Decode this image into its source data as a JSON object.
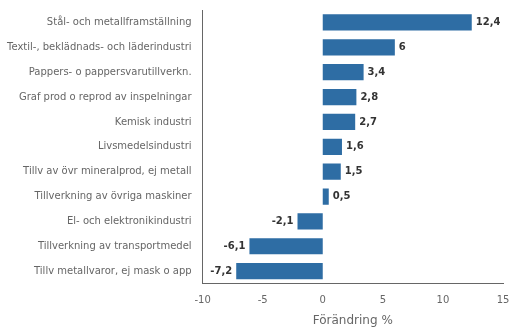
{
  "chart_data": {
    "type": "bar",
    "orientation": "horizontal",
    "categories": [
      "Tillv metallvaror, ej mask o app",
      "Tillverkning av transportmedel",
      "El- och elektronikindustri",
      "Tillverkning av övriga maskiner",
      "Tillv av övr mineralprod, ej metall",
      "Livsmedelsindustri",
      "Kemisk industri",
      "Graf prod o reprod av inspelningar",
      "Pappers- o pappersvarutillverkn.",
      "Textil-, beklädnads- och läderindustri",
      "Stål- och metallframställning"
    ],
    "values": [
      -7.2,
      -6.1,
      -2.1,
      0.5,
      1.5,
      1.6,
      2.7,
      2.8,
      3.4,
      6.0,
      12.4
    ],
    "value_labels": [
      "-7,2",
      "-6,1",
      "-2,1",
      "0,5",
      "1,5",
      "1,6",
      "2,7",
      "2,8",
      "3,4",
      "6",
      "12,4"
    ],
    "data_labels": true,
    "color": "#2E6DA4",
    "xlabel": "Förändring %",
    "xlim": [
      -10,
      15
    ],
    "xticks": [
      -10,
      -5,
      0,
      5,
      10,
      15
    ],
    "grid": false
  }
}
